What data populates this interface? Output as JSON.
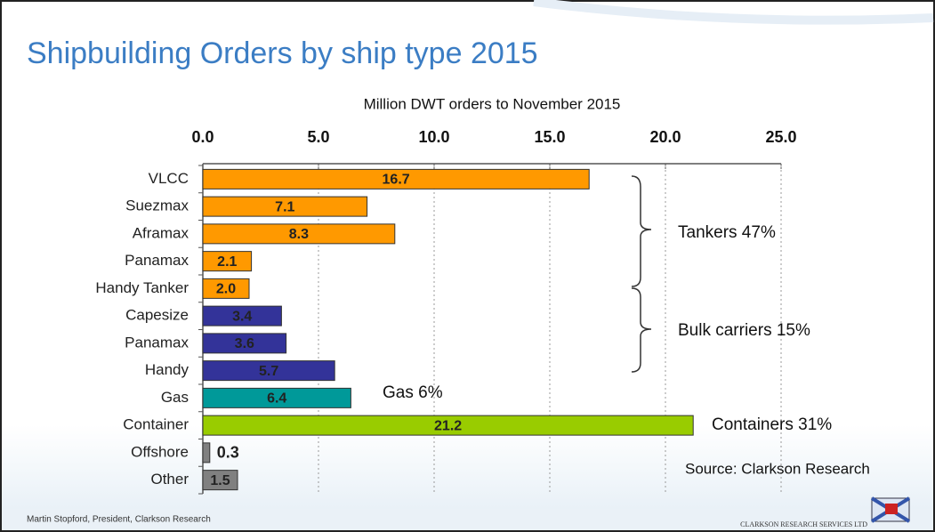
{
  "chart_data": {
    "type": "bar",
    "orientation": "horizontal",
    "title": "Shipbuilding Orders by ship type 2015",
    "x_label": "Million DWT orders to November 2015",
    "categories": [
      "VLCC",
      "Suezmax",
      "Aframax",
      "Panamax",
      "Handy Tanker",
      "Capesize",
      "Panamax",
      "Handy",
      "Gas",
      "Container",
      "Offshore",
      "Other"
    ],
    "values": [
      16.7,
      7.1,
      8.3,
      2.1,
      2.0,
      3.4,
      3.6,
      5.7,
      6.4,
      21.2,
      0.3,
      1.5
    ],
    "value_labels": [
      "16.7",
      "7.1",
      "8.3",
      "2.1",
      "2.0",
      "3.4",
      "3.6",
      "5.7",
      "6.4",
      "21.2",
      "0.3",
      "1.5"
    ],
    "colors": [
      "#ff9900",
      "#ff9900",
      "#ff9900",
      "#ff9900",
      "#ff9900",
      "#333399",
      "#333399",
      "#333399",
      "#009999",
      "#99cc00",
      "#808080",
      "#808080"
    ],
    "xlim": [
      0,
      25
    ],
    "xticks": [
      {
        "value": 0,
        "label": "0.0"
      },
      {
        "value": 5,
        "label": "5.0"
      },
      {
        "value": 10,
        "label": "10.0"
      },
      {
        "value": 15,
        "label": "15.0"
      },
      {
        "value": 20,
        "label": "20.0"
      },
      {
        "value": 25,
        "label": "25.0"
      }
    ],
    "grid": true,
    "annotations": [
      "Tankers 47%",
      "Bulk carriers 15%",
      "Gas 6%",
      "Containers 31%",
      "Source: Clarkson Research"
    ],
    "footer": [
      "Martin Stopford, President,  Clarkson Research",
      "CLARKSON RESEARCH SERVICES LTD"
    ]
  }
}
